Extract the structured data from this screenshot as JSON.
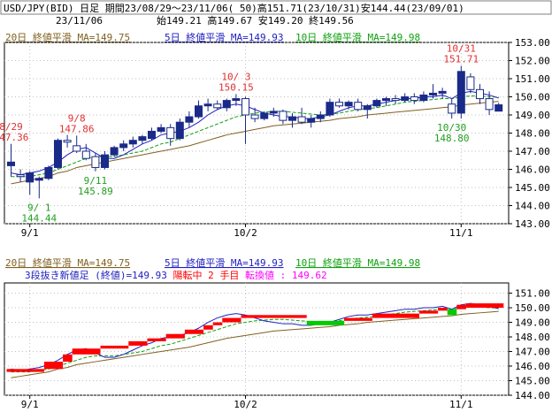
{
  "header": {
    "line1": "USD/JPY(BID) 日足 期間23/08/29～23/11/06( 50)高151.71(23/10/31)安144.44(23/09/01)",
    "date": "23/11/06",
    "ohlc": "始149.21 高149.67 安149.20 終149.56"
  },
  "colors": {
    "ma20": "#806020",
    "ma5": "#2020c0",
    "ma10": "#10a010",
    "up_candle": "#1a2a88",
    "down_candle": "#ffffff",
    "annotation_high": "#e03030",
    "annotation_low": "#20a020",
    "brick_up": "#ff0000",
    "brick_down": "#00cc00",
    "grid": "#c0c0c0",
    "magenta": "#ff00ff"
  },
  "chart_data": [
    {
      "type": "candlestick",
      "legend": [
        {
          "text": "20日 終値平滑 MA=149.75",
          "color_key": "ma20"
        },
        {
          "text": "5日 終値平滑 MA=149.93",
          "color_key": "ma5"
        },
        {
          "text": "10日 終値平滑 MA=149.98",
          "color_key": "ma10"
        }
      ],
      "ylim": [
        143.0,
        153.0
      ],
      "yticks": [
        "153.00",
        "152.00",
        "151.00",
        "150.00",
        "149.00",
        "148.00",
        "147.00",
        "146.00",
        "145.00",
        "144.00",
        "143.00"
      ],
      "xtick_labels": [
        {
          "index": 2,
          "label": "9/1"
        },
        {
          "index": 25,
          "label": "10/2"
        },
        {
          "index": 48,
          "label": "11/1"
        }
      ],
      "candles": [
        {
          "o": 146.2,
          "h": 147.4,
          "l": 145.6,
          "c": 146.4
        },
        {
          "o": 145.7,
          "h": 146.0,
          "l": 145.3,
          "c": 145.6
        },
        {
          "o": 145.3,
          "h": 145.9,
          "l": 144.6,
          "c": 145.8
        },
        {
          "o": 145.4,
          "h": 145.6,
          "l": 144.4,
          "c": 145.5
        },
        {
          "o": 145.5,
          "h": 146.2,
          "l": 145.4,
          "c": 146.1
        },
        {
          "o": 146.1,
          "h": 147.7,
          "l": 146.0,
          "c": 147.6
        },
        {
          "o": 147.6,
          "h": 147.9,
          "l": 147.2,
          "c": 147.5
        },
        {
          "o": 147.3,
          "h": 147.86,
          "l": 146.9,
          "c": 147.0
        },
        {
          "o": 147.0,
          "h": 147.4,
          "l": 146.5,
          "c": 146.6
        },
        {
          "o": 146.7,
          "h": 146.9,
          "l": 145.89,
          "c": 146.1
        },
        {
          "o": 146.1,
          "h": 147.0,
          "l": 146.0,
          "c": 146.8
        },
        {
          "o": 146.8,
          "h": 147.3,
          "l": 146.7,
          "c": 147.2
        },
        {
          "o": 147.2,
          "h": 147.6,
          "l": 147.0,
          "c": 147.4
        },
        {
          "o": 147.4,
          "h": 147.8,
          "l": 147.2,
          "c": 147.6
        },
        {
          "o": 147.6,
          "h": 147.9,
          "l": 147.4,
          "c": 147.8
        },
        {
          "o": 147.7,
          "h": 148.3,
          "l": 147.6,
          "c": 148.1
        },
        {
          "o": 148.1,
          "h": 148.5,
          "l": 148.0,
          "c": 148.3
        },
        {
          "o": 148.3,
          "h": 148.5,
          "l": 147.3,
          "c": 147.7
        },
        {
          "o": 147.7,
          "h": 148.8,
          "l": 147.6,
          "c": 148.6
        },
        {
          "o": 148.6,
          "h": 149.2,
          "l": 148.3,
          "c": 148.9
        },
        {
          "o": 148.9,
          "h": 149.8,
          "l": 148.8,
          "c": 149.5
        },
        {
          "o": 149.5,
          "h": 149.9,
          "l": 149.2,
          "c": 149.6
        },
        {
          "o": 149.6,
          "h": 149.8,
          "l": 149.3,
          "c": 149.4
        },
        {
          "o": 149.4,
          "h": 149.9,
          "l": 149.2,
          "c": 149.8
        },
        {
          "o": 149.8,
          "h": 150.15,
          "l": 149.5,
          "c": 149.9
        },
        {
          "o": 149.9,
          "h": 150.0,
          "l": 147.4,
          "c": 149.0
        },
        {
          "o": 149.0,
          "h": 149.4,
          "l": 148.6,
          "c": 148.8
        },
        {
          "o": 148.8,
          "h": 149.2,
          "l": 148.7,
          "c": 149.1
        },
        {
          "o": 149.1,
          "h": 149.4,
          "l": 148.9,
          "c": 149.2
        },
        {
          "o": 149.2,
          "h": 149.3,
          "l": 148.5,
          "c": 148.7
        },
        {
          "o": 148.7,
          "h": 149.1,
          "l": 148.3,
          "c": 148.9
        },
        {
          "o": 148.9,
          "h": 149.4,
          "l": 148.5,
          "c": 148.6
        },
        {
          "o": 148.6,
          "h": 149.0,
          "l": 148.3,
          "c": 148.8
        },
        {
          "o": 148.8,
          "h": 149.2,
          "l": 148.6,
          "c": 149.0
        },
        {
          "o": 149.0,
          "h": 149.9,
          "l": 148.9,
          "c": 149.7
        },
        {
          "o": 149.7,
          "h": 149.9,
          "l": 149.4,
          "c": 149.5
        },
        {
          "o": 149.5,
          "h": 149.8,
          "l": 149.3,
          "c": 149.7
        },
        {
          "o": 149.7,
          "h": 149.9,
          "l": 149.2,
          "c": 149.3
        },
        {
          "o": 149.3,
          "h": 149.6,
          "l": 148.8,
          "c": 149.5
        },
        {
          "o": 149.5,
          "h": 149.9,
          "l": 149.4,
          "c": 149.8
        },
        {
          "o": 149.8,
          "h": 150.0,
          "l": 149.5,
          "c": 149.9
        },
        {
          "o": 149.9,
          "h": 150.1,
          "l": 149.6,
          "c": 149.8
        },
        {
          "o": 149.8,
          "h": 150.2,
          "l": 149.7,
          "c": 150.0
        },
        {
          "o": 150.0,
          "h": 150.2,
          "l": 149.6,
          "c": 149.8
        },
        {
          "o": 149.8,
          "h": 150.3,
          "l": 149.7,
          "c": 150.1
        },
        {
          "o": 150.1,
          "h": 150.7,
          "l": 149.9,
          "c": 150.2
        },
        {
          "o": 150.2,
          "h": 150.5,
          "l": 149.9,
          "c": 150.3
        },
        {
          "o": 149.6,
          "h": 149.9,
          "l": 148.8,
          "c": 149.1
        },
        {
          "o": 149.1,
          "h": 151.71,
          "l": 148.8,
          "c": 151.4
        },
        {
          "o": 151.1,
          "h": 151.3,
          "l": 150.2,
          "c": 150.4
        },
        {
          "o": 150.4,
          "h": 150.7,
          "l": 149.6,
          "c": 149.9
        },
        {
          "o": 149.9,
          "h": 150.3,
          "l": 149.0,
          "c": 149.3
        },
        {
          "o": 149.21,
          "h": 149.67,
          "l": 149.2,
          "c": 149.56
        }
      ],
      "ma20": [
        145.2,
        145.3,
        145.4,
        145.5,
        145.6,
        145.8,
        145.9,
        146.1,
        146.2,
        146.3,
        146.4,
        146.5,
        146.6,
        146.7,
        146.8,
        146.9,
        147.0,
        147.1,
        147.2,
        147.3,
        147.45,
        147.6,
        147.75,
        147.9,
        148.0,
        148.1,
        148.2,
        148.3,
        148.4,
        148.45,
        148.5,
        148.55,
        148.6,
        148.65,
        148.7,
        148.8,
        148.85,
        148.9,
        149.0,
        149.05,
        149.1,
        149.15,
        149.2,
        149.25,
        149.3,
        149.35,
        149.4,
        149.45,
        149.55,
        149.6,
        149.65,
        149.7,
        149.75
      ],
      "ma5": [
        145.8,
        145.7,
        145.8,
        145.9,
        146.1,
        146.4,
        146.8,
        147.1,
        147.2,
        146.9,
        146.6,
        146.6,
        146.8,
        147.1,
        147.4,
        147.6,
        147.9,
        148.0,
        148.1,
        148.3,
        148.6,
        149.0,
        149.3,
        149.5,
        149.6,
        149.5,
        149.3,
        149.1,
        149.0,
        148.9,
        148.9,
        148.8,
        148.8,
        148.9,
        149.0,
        149.2,
        149.4,
        149.5,
        149.5,
        149.6,
        149.7,
        149.8,
        149.9,
        149.9,
        150.0,
        150.0,
        150.1,
        149.9,
        150.2,
        150.3,
        150.2,
        150.1,
        149.93
      ],
      "ma10": [
        145.6,
        145.6,
        145.6,
        145.7,
        145.8,
        146.0,
        146.2,
        146.4,
        146.6,
        146.7,
        146.7,
        146.7,
        146.8,
        146.9,
        147.0,
        147.2,
        147.4,
        147.5,
        147.7,
        147.9,
        148.1,
        148.3,
        148.5,
        148.7,
        148.9,
        149.0,
        149.1,
        149.15,
        149.2,
        149.2,
        149.15,
        149.1,
        149.05,
        149.0,
        149.05,
        149.1,
        149.2,
        149.3,
        149.35,
        149.4,
        149.5,
        149.6,
        149.7,
        149.75,
        149.8,
        149.85,
        149.9,
        149.9,
        150.0,
        150.05,
        150.05,
        150.0,
        149.98
      ],
      "annotations": [
        {
          "index": 0,
          "kind": "high",
          "date": "8/29",
          "value": "147.36"
        },
        {
          "index": 7,
          "kind": "high",
          "date": "9/8",
          "value": "147.86"
        },
        {
          "index": 3,
          "kind": "low",
          "date": "9/ 1",
          "value": "144.44"
        },
        {
          "index": 9,
          "kind": "low",
          "date": "9/11",
          "value": "145.89"
        },
        {
          "index": 24,
          "kind": "high",
          "date": "10/ 3",
          "value": "150.15"
        },
        {
          "index": 48,
          "kind": "high",
          "date": "10/31",
          "value": "151.71"
        },
        {
          "index": 47,
          "kind": "low",
          "date": "10/30",
          "value": "148.80"
        }
      ]
    },
    {
      "type": "three-line-break",
      "legend": [
        {
          "text": "20日 終値平滑 MA=149.75",
          "color_key": "ma20"
        },
        {
          "text": "5日 終値平滑 MA=149.93",
          "color_key": "ma5"
        },
        {
          "text": "10日 終値平滑 MA=149.98",
          "color_key": "ma10"
        }
      ],
      "subtitle_parts": [
        {
          "text": "3段抜き新値足 (終値)=149.93 ",
          "color_key": "ma5"
        },
        {
          "text": "陽転中",
          "color_key": "brick_up"
        },
        {
          "text": "  2 手目 ",
          "color_key": "brick_up"
        },
        {
          "text": "転換値 : 149.62",
          "color_key": "magenta"
        }
      ],
      "ylim": [
        144.0,
        151.7
      ],
      "yticks": [
        "151.00",
        "150.00",
        "149.00",
        "148.00",
        "147.00",
        "146.00",
        "145.00",
        "144.00"
      ],
      "bricks": [
        {
          "from": 0,
          "to": 4,
          "low": 145.6,
          "high": 145.8,
          "dir": "up"
        },
        {
          "from": 4,
          "to": 6,
          "low": 145.8,
          "high": 146.3,
          "dir": "up"
        },
        {
          "from": 6,
          "to": 7,
          "low": 146.3,
          "high": 146.8,
          "dir": "up"
        },
        {
          "from": 7,
          "to": 10,
          "low": 146.8,
          "high": 147.2,
          "dir": "up"
        },
        {
          "from": 10,
          "to": 13,
          "low": 147.2,
          "high": 147.4,
          "dir": "up"
        },
        {
          "from": 13,
          "to": 15,
          "low": 147.4,
          "high": 147.7,
          "dir": "up"
        },
        {
          "from": 15,
          "to": 17,
          "low": 147.7,
          "high": 147.9,
          "dir": "up"
        },
        {
          "from": 17,
          "to": 19,
          "low": 147.9,
          "high": 148.2,
          "dir": "up"
        },
        {
          "from": 19,
          "to": 21,
          "low": 148.2,
          "high": 148.5,
          "dir": "up"
        },
        {
          "from": 21,
          "to": 22,
          "low": 148.5,
          "high": 148.8,
          "dir": "up"
        },
        {
          "from": 22,
          "to": 23,
          "low": 148.8,
          "high": 149.0,
          "dir": "up"
        },
        {
          "from": 23,
          "to": 25,
          "low": 149.0,
          "high": 149.3,
          "dir": "up"
        },
        {
          "from": 25,
          "to": 32,
          "low": 149.3,
          "high": 149.5,
          "dir": "up"
        },
        {
          "from": 32,
          "to": 36,
          "low": 148.8,
          "high": 149.1,
          "dir": "down"
        },
        {
          "from": 36,
          "to": 39,
          "low": 149.1,
          "high": 149.3,
          "dir": "up"
        },
        {
          "from": 39,
          "to": 44,
          "low": 149.3,
          "high": 149.6,
          "dir": "up"
        },
        {
          "from": 44,
          "to": 46,
          "low": 149.6,
          "high": 149.8,
          "dir": "up"
        },
        {
          "from": 46,
          "to": 47,
          "low": 149.8,
          "high": 150.0,
          "dir": "up"
        },
        {
          "from": 47,
          "to": 48,
          "low": 149.5,
          "high": 149.9,
          "dir": "down"
        },
        {
          "from": 48,
          "to": 49,
          "low": 149.9,
          "high": 150.2,
          "dir": "up"
        },
        {
          "from": 49,
          "to": 53,
          "low": 150.0,
          "high": 150.3,
          "dir": "up"
        }
      ]
    }
  ]
}
